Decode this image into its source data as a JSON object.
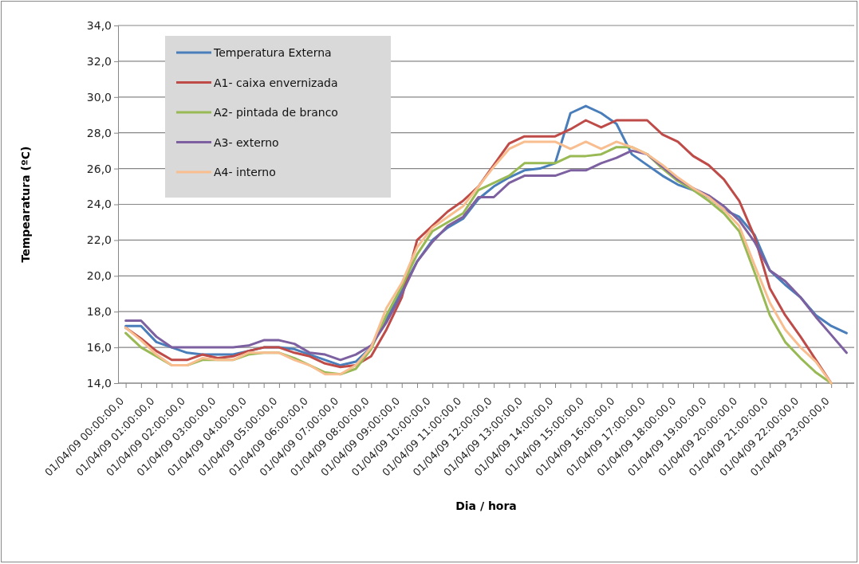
{
  "chart_data": {
    "type": "line",
    "xlabel": "Dia / hora",
    "ylabel": "Tempearatura (ºC)",
    "ylim": [
      14,
      34
    ],
    "yticks": [
      {
        "value": 14,
        "label": "14,0"
      },
      {
        "value": 16,
        "label": "16,0"
      },
      {
        "value": 18,
        "label": "18,0"
      },
      {
        "value": 20,
        "label": "20,0"
      },
      {
        "value": 22,
        "label": "22,0"
      },
      {
        "value": 24,
        "label": "24,0"
      },
      {
        "value": 26,
        "label": "26,0"
      },
      {
        "value": 28,
        "label": "28,0"
      },
      {
        "value": 30,
        "label": "30,0"
      },
      {
        "value": 32,
        "label": "32,0"
      },
      {
        "value": 34,
        "label": "34,0"
      }
    ],
    "categories": [
      "01/04/09 00:00:00,0",
      null,
      "01/04/09 01:00:00,0",
      null,
      "01/04/09 02:00:00,0",
      null,
      "01/04/09 03:00:00,0",
      null,
      "01/04/09 04:00:00,0",
      null,
      "01/04/09 05:00:00,0",
      null,
      "01/04/09 06:00:00,0",
      null,
      "01/04/09 07:00:00,0",
      null,
      "01/04/09 08:00:00,0",
      null,
      "01/04/09 09:00:00,0",
      null,
      "01/04/09 10:00:00,0",
      null,
      "01/04/09 11:00:00,0",
      null,
      "01/04/09 12:00:00,0",
      null,
      "01/04/09 13:00:00,0",
      null,
      "01/04/09 14:00:00,0",
      null,
      "01/04/09 15:00:00,0",
      null,
      "01/04/09 16:00:00,0",
      null,
      "01/04/09 17:00:00,0",
      null,
      "01/04/09 18:00:00,0",
      null,
      "01/04/09 19:00:00,0",
      null,
      "01/04/09 20:00:00,0",
      null,
      "01/04/09 21:00:00,0",
      null,
      "01/04/09 22:00:00,0",
      null,
      "01/04/09 23:00:00,0",
      null
    ],
    "grid": "y",
    "legend": "top left",
    "marker": "none",
    "line_style": "solid",
    "series": [
      {
        "name": "Temperatura Externa",
        "color": "#4a7ebb",
        "values": [
          17.2,
          17.2,
          16.3,
          16.0,
          15.7,
          15.6,
          15.6,
          15.6,
          15.8,
          16.0,
          16.0,
          15.9,
          15.6,
          15.3,
          15.0,
          15.2,
          16.0,
          17.6,
          19.2,
          20.8,
          22.0,
          22.7,
          23.2,
          24.3,
          25.0,
          25.5,
          25.9,
          26.0,
          26.3,
          29.1,
          29.5,
          29.1,
          28.5,
          26.8,
          26.2,
          25.6,
          25.1,
          24.8,
          24.4,
          23.7,
          23.3,
          22.3,
          20.3,
          19.5,
          18.8,
          17.8,
          17.2,
          16.8
        ]
      },
      {
        "name": "A1- caixa envernizada",
        "color": "#be4b48",
        "values": [
          17.1,
          16.5,
          15.8,
          15.3,
          15.3,
          15.6,
          15.4,
          15.5,
          15.8,
          16.0,
          16.0,
          15.7,
          15.5,
          15.1,
          14.9,
          15.0,
          15.5,
          17.0,
          18.8,
          22.0,
          22.8,
          23.6,
          24.2,
          25.0,
          26.2,
          27.4,
          27.8,
          27.8,
          27.8,
          28.2,
          28.7,
          28.3,
          28.7,
          28.7,
          28.7,
          27.9,
          27.5,
          26.7,
          26.2,
          25.4,
          24.2,
          22.2,
          19.3,
          17.8,
          16.6,
          15.3,
          14.0,
          null
        ]
      },
      {
        "name": "A2- pintada de branco",
        "color": "#98b954",
        "values": [
          16.8,
          16.0,
          15.5,
          15.0,
          15.0,
          15.3,
          15.3,
          15.3,
          15.6,
          15.7,
          15.7,
          15.4,
          15.0,
          14.6,
          14.5,
          14.8,
          15.9,
          17.8,
          19.4,
          21.2,
          22.5,
          23.0,
          23.5,
          24.8,
          25.2,
          25.6,
          26.3,
          26.3,
          26.3,
          26.7,
          26.7,
          26.8,
          27.2,
          27.2,
          26.8,
          26.0,
          25.3,
          24.8,
          24.2,
          23.5,
          22.5,
          20.2,
          17.8,
          16.3,
          15.4,
          14.6,
          14.0,
          null
        ]
      },
      {
        "name": "A3- externo",
        "color": "#7d60a0",
        "values": [
          17.5,
          17.5,
          16.6,
          16.0,
          16.0,
          16.0,
          16.0,
          16.0,
          16.1,
          16.4,
          16.4,
          16.2,
          15.7,
          15.6,
          15.3,
          15.6,
          16.1,
          17.4,
          19.0,
          20.8,
          21.9,
          22.8,
          23.3,
          24.4,
          24.4,
          25.2,
          25.6,
          25.6,
          25.6,
          25.9,
          25.9,
          26.3,
          26.6,
          27.0,
          26.8,
          26.1,
          25.4,
          24.9,
          24.5,
          23.9,
          23.1,
          21.9,
          20.3,
          19.7,
          18.8,
          17.7,
          16.7,
          15.7
        ]
      },
      {
        "name": "A4- interno",
        "color": "#f9be8f",
        "values": [
          17.1,
          16.4,
          15.6,
          15.0,
          15.0,
          15.4,
          15.3,
          15.3,
          15.7,
          15.7,
          15.7,
          15.3,
          15.0,
          14.5,
          14.5,
          15.0,
          16.0,
          18.2,
          19.6,
          21.6,
          22.7,
          23.3,
          23.9,
          25.0,
          26.1,
          27.1,
          27.5,
          27.5,
          27.5,
          27.1,
          27.5,
          27.1,
          27.5,
          27.2,
          26.8,
          26.2,
          25.5,
          24.9,
          24.4,
          23.7,
          22.8,
          20.6,
          18.5,
          17.0,
          16.0,
          15.2,
          14.0,
          null
        ]
      }
    ]
  }
}
